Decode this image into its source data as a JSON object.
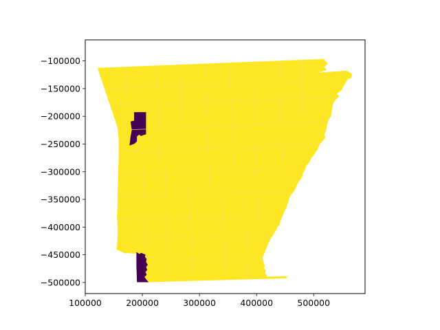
{
  "chart_data": {
    "type": "map",
    "xlim": [
      100000,
      590000
    ],
    "ylim": [
      -520000,
      -62000
    ],
    "x_ticks": [
      {
        "value": 100000,
        "label": "100000"
      },
      {
        "value": 200000,
        "label": "200000"
      },
      {
        "value": 300000,
        "label": "300000"
      },
      {
        "value": 400000,
        "label": "400000"
      },
      {
        "value": 500000,
        "label": "500000"
      }
    ],
    "y_ticks": [
      {
        "value": -100000,
        "label": "−100000"
      },
      {
        "value": -150000,
        "label": "−150000"
      },
      {
        "value": -200000,
        "label": "−200000"
      },
      {
        "value": -250000,
        "label": "−250000"
      },
      {
        "value": -300000,
        "label": "−300000"
      },
      {
        "value": -350000,
        "label": "−350000"
      },
      {
        "value": -400000,
        "label": "−400000"
      },
      {
        "value": -450000,
        "label": "−450000"
      },
      {
        "value": -500000,
        "label": "−500000"
      }
    ],
    "colors": {
      "fill_high": "#fde725",
      "fill_low": "#440154",
      "county_border": "#f4e05a"
    },
    "regions": [
      {
        "category": "high",
        "polygon": [
          [
            122000,
            -113000
          ],
          [
            517000,
            -97000
          ],
          [
            520000,
            -100000
          ],
          [
            524000,
            -105000
          ],
          [
            518000,
            -111000
          ],
          [
            522000,
            -116000
          ],
          [
            511000,
            -120000
          ],
          [
            491000,
            -123000
          ],
          [
            557000,
            -118000
          ],
          [
            566000,
            -123000
          ],
          [
            566000,
            -130000
          ],
          [
            560000,
            -132000
          ],
          [
            556000,
            -138000
          ],
          [
            552000,
            -146000
          ],
          [
            548000,
            -153000
          ],
          [
            540000,
            -159000
          ],
          [
            544000,
            -164000
          ],
          [
            538000,
            -170000
          ],
          [
            534000,
            -176000
          ],
          [
            532000,
            -185000
          ],
          [
            531000,
            -192000
          ],
          [
            530000,
            -200000
          ],
          [
            526000,
            -205000
          ],
          [
            524000,
            -212000
          ],
          [
            522000,
            -220000
          ],
          [
            521000,
            -227000
          ],
          [
            518000,
            -232000
          ],
          [
            520000,
            -238000
          ],
          [
            517000,
            -242000
          ],
          [
            514000,
            -246000
          ],
          [
            510000,
            -250000
          ],
          [
            508000,
            -256000
          ],
          [
            506000,
            -261000
          ],
          [
            502000,
            -266000
          ],
          [
            500000,
            -270000
          ],
          [
            496000,
            -274000
          ],
          [
            494000,
            -278000
          ],
          [
            492000,
            -283000
          ],
          [
            488000,
            -287000
          ],
          [
            486000,
            -292000
          ],
          [
            484000,
            -297000
          ],
          [
            481000,
            -302000
          ],
          [
            480000,
            -307000
          ],
          [
            478000,
            -312000
          ],
          [
            474000,
            -317000
          ],
          [
            471000,
            -322000
          ],
          [
            469000,
            -327000
          ],
          [
            467000,
            -332000
          ],
          [
            464000,
            -337000
          ],
          [
            461000,
            -340000
          ],
          [
            458000,
            -345000
          ],
          [
            456000,
            -350000
          ],
          [
            455000,
            -355000
          ],
          [
            453000,
            -360000
          ],
          [
            452000,
            -365000
          ],
          [
            449000,
            -370000
          ],
          [
            447000,
            -375000
          ],
          [
            445000,
            -380000
          ],
          [
            443000,
            -385000
          ],
          [
            441000,
            -390000
          ],
          [
            440000,
            -395000
          ],
          [
            436000,
            -400000
          ],
          [
            434000,
            -405000
          ],
          [
            431000,
            -410000
          ],
          [
            428000,
            -415000
          ],
          [
            425000,
            -420000
          ],
          [
            422000,
            -425000
          ],
          [
            420000,
            -430000
          ],
          [
            418000,
            -435000
          ],
          [
            416000,
            -440000
          ],
          [
            414000,
            -445000
          ],
          [
            412000,
            -450000
          ],
          [
            410000,
            -455000
          ],
          [
            411000,
            -460000
          ],
          [
            412000,
            -465000
          ],
          [
            414000,
            -470000
          ],
          [
            412000,
            -475000
          ],
          [
            416000,
            -478000
          ],
          [
            414000,
            -483000
          ],
          [
            418000,
            -487000
          ],
          [
            415000,
            -490000
          ],
          [
            452000,
            -489000
          ],
          [
            453000,
            -492000
          ],
          [
            210000,
            -499000
          ],
          [
            206000,
            -494000
          ],
          [
            203000,
            -490000
          ],
          [
            207000,
            -486000
          ],
          [
            205000,
            -481000
          ],
          [
            208000,
            -477000
          ],
          [
            206000,
            -472000
          ],
          [
            209000,
            -468000
          ],
          [
            206000,
            -463000
          ],
          [
            207000,
            -458000
          ],
          [
            204000,
            -454000
          ],
          [
            205000,
            -450000
          ],
          [
            198000,
            -447000
          ],
          [
            195000,
            -449000
          ],
          [
            190000,
            -446000
          ],
          [
            186000,
            -448000
          ],
          [
            180000,
            -447000
          ],
          [
            175000,
            -446000
          ],
          [
            170000,
            -447000
          ],
          [
            163000,
            -444000
          ],
          [
            159000,
            -442000
          ],
          [
            155000,
            -440000
          ],
          [
            156000,
            -434000
          ],
          [
            157000,
            -420000
          ],
          [
            157000,
            -400000
          ],
          [
            156000,
            -380000
          ],
          [
            157000,
            -360000
          ],
          [
            157000,
            -340000
          ],
          [
            158000,
            -320000
          ],
          [
            158000,
            -300000
          ],
          [
            159000,
            -280000
          ],
          [
            159000,
            -260000
          ],
          [
            159000,
            -240000
          ],
          [
            158000,
            -230000
          ],
          [
            157000,
            -220000
          ]
        ]
      },
      {
        "category": "low",
        "polygon": [
          [
            186000,
            -193000
          ],
          [
            206000,
            -193000
          ],
          [
            206000,
            -232000
          ],
          [
            197000,
            -235000
          ],
          [
            195000,
            -232000
          ],
          [
            190000,
            -236000
          ],
          [
            190000,
            -245000
          ],
          [
            186000,
            -249000
          ],
          [
            178000,
            -252000
          ],
          [
            180000,
            -236000
          ],
          [
            182000,
            -225000
          ],
          [
            180000,
            -210000
          ],
          [
            186000,
            -208000
          ]
        ]
      },
      {
        "category": "low",
        "polygon": [
          [
            190000,
            -446000
          ],
          [
            195000,
            -449000
          ],
          [
            198000,
            -447000
          ],
          [
            205000,
            -450000
          ],
          [
            204000,
            -454000
          ],
          [
            207000,
            -458000
          ],
          [
            206000,
            -463000
          ],
          [
            209000,
            -468000
          ],
          [
            206000,
            -472000
          ],
          [
            208000,
            -477000
          ],
          [
            205000,
            -481000
          ],
          [
            207000,
            -486000
          ],
          [
            203000,
            -490000
          ],
          [
            206000,
            -494000
          ],
          [
            210000,
            -499000
          ],
          [
            191000,
            -499000
          ],
          [
            190000,
            -470000
          ]
        ]
      }
    ],
    "county_lines": [
      [
        [
          122000,
          -150000
        ],
        [
          520000,
          -138000
        ]
      ],
      [
        [
          150000,
          -180000
        ],
        [
          548000,
          -165000
        ]
      ],
      [
        [
          160000,
          -225000
        ],
        [
          530000,
          -210000
        ]
      ],
      [
        [
          159000,
          -265000
        ],
        [
          515000,
          -250000
        ]
      ],
      [
        [
          158000,
          -305000
        ],
        [
          485000,
          -295000
        ]
      ],
      [
        [
          157000,
          -345000
        ],
        [
          460000,
          -335000
        ]
      ],
      [
        [
          157000,
          -385000
        ],
        [
          442000,
          -380000
        ]
      ],
      [
        [
          175000,
          -420000
        ],
        [
          430000,
          -415000
        ]
      ],
      [
        [
          210000,
          -455000
        ],
        [
          412000,
          -455000
        ]
      ],
      [
        [
          172000,
          -113000
        ],
        [
          175000,
          -205000
        ]
      ],
      [
        [
          225000,
          -112000
        ],
        [
          232000,
          -300000
        ]
      ],
      [
        [
          268000,
          -110000
        ],
        [
          270000,
          -210000
        ]
      ],
      [
        [
          310000,
          -108000
        ],
        [
          318000,
          -330000
        ]
      ],
      [
        [
          352000,
          -106000
        ],
        [
          362000,
          -300000
        ]
      ],
      [
        [
          395000,
          -105000
        ],
        [
          402000,
          -390000
        ]
      ],
      [
        [
          440000,
          -102000
        ],
        [
          445000,
          -280000
        ]
      ],
      [
        [
          478000,
          -100000
        ],
        [
          480000,
          -240000
        ]
      ],
      [
        [
          240000,
          -300000
        ],
        [
          245000,
          -495000
        ]
      ],
      [
        [
          280000,
          -320000
        ],
        [
          290000,
          -495000
        ]
      ],
      [
        [
          340000,
          -330000
        ],
        [
          345000,
          -490000
        ]
      ],
      [
        [
          380000,
          -360000
        ],
        [
          385000,
          -490000
        ]
      ],
      [
        [
          200000,
          -260000
        ],
        [
          205000,
          -440000
        ]
      ]
    ]
  }
}
